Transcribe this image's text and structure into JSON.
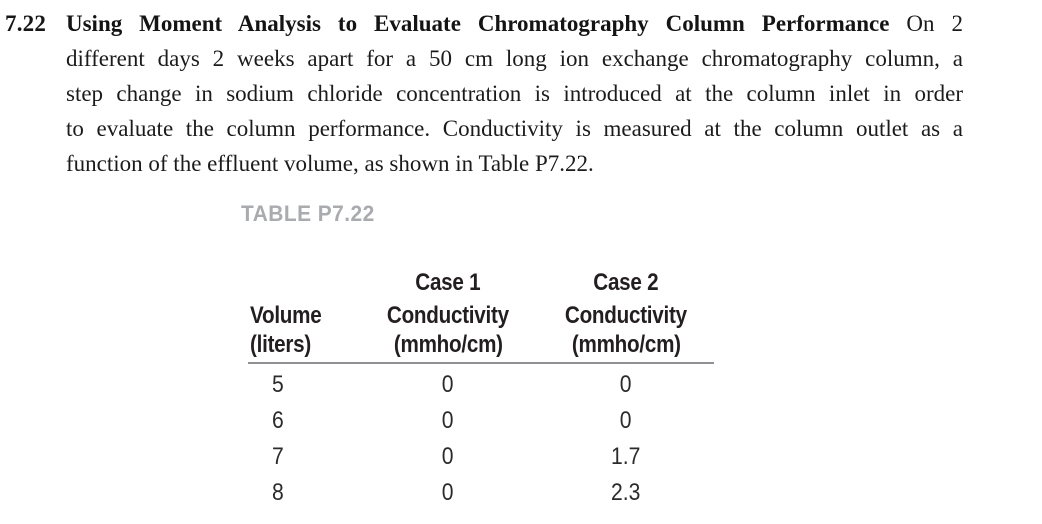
{
  "problem": {
    "number": "7.22",
    "title_bold": "Using Moment Analysis to Evaluate Chromatography Column Performance",
    "title_tail": " On 2",
    "lines": [
      "different days 2 weeks apart for a 50 cm long ion exchange chromatography column, a",
      "step change in sodium chloride concentration is introduced at the column inlet in order",
      "to evaluate the column performance. Conductivity is measured at the column outlet as a",
      "function of the effluent volume, as shown in Table P7.22."
    ]
  },
  "table": {
    "label": "TABLE P7.22",
    "group_headers": {
      "case1": "Case 1",
      "case2": "Case 2"
    },
    "columns": [
      {
        "title": "Volume",
        "units": "(liters)"
      },
      {
        "title": "Conductivity",
        "units": "(mmho/cm)"
      },
      {
        "title": "Conductivity",
        "units": "(mmho/cm)"
      }
    ],
    "rows": [
      {
        "volume": "5",
        "case1": "0",
        "case2": "0"
      },
      {
        "volume": "6",
        "case1": "0",
        "case2": "0"
      },
      {
        "volume": "7",
        "case1": "0",
        "case2": "1.7"
      },
      {
        "volume": "8",
        "case1": "0",
        "case2": "2.3"
      }
    ]
  },
  "colors": {
    "body_text": "#1b1b1b",
    "table_text": "#231f20",
    "table_label": "#a9abae",
    "rule": "#8f9194",
    "background": "#ffffff"
  }
}
